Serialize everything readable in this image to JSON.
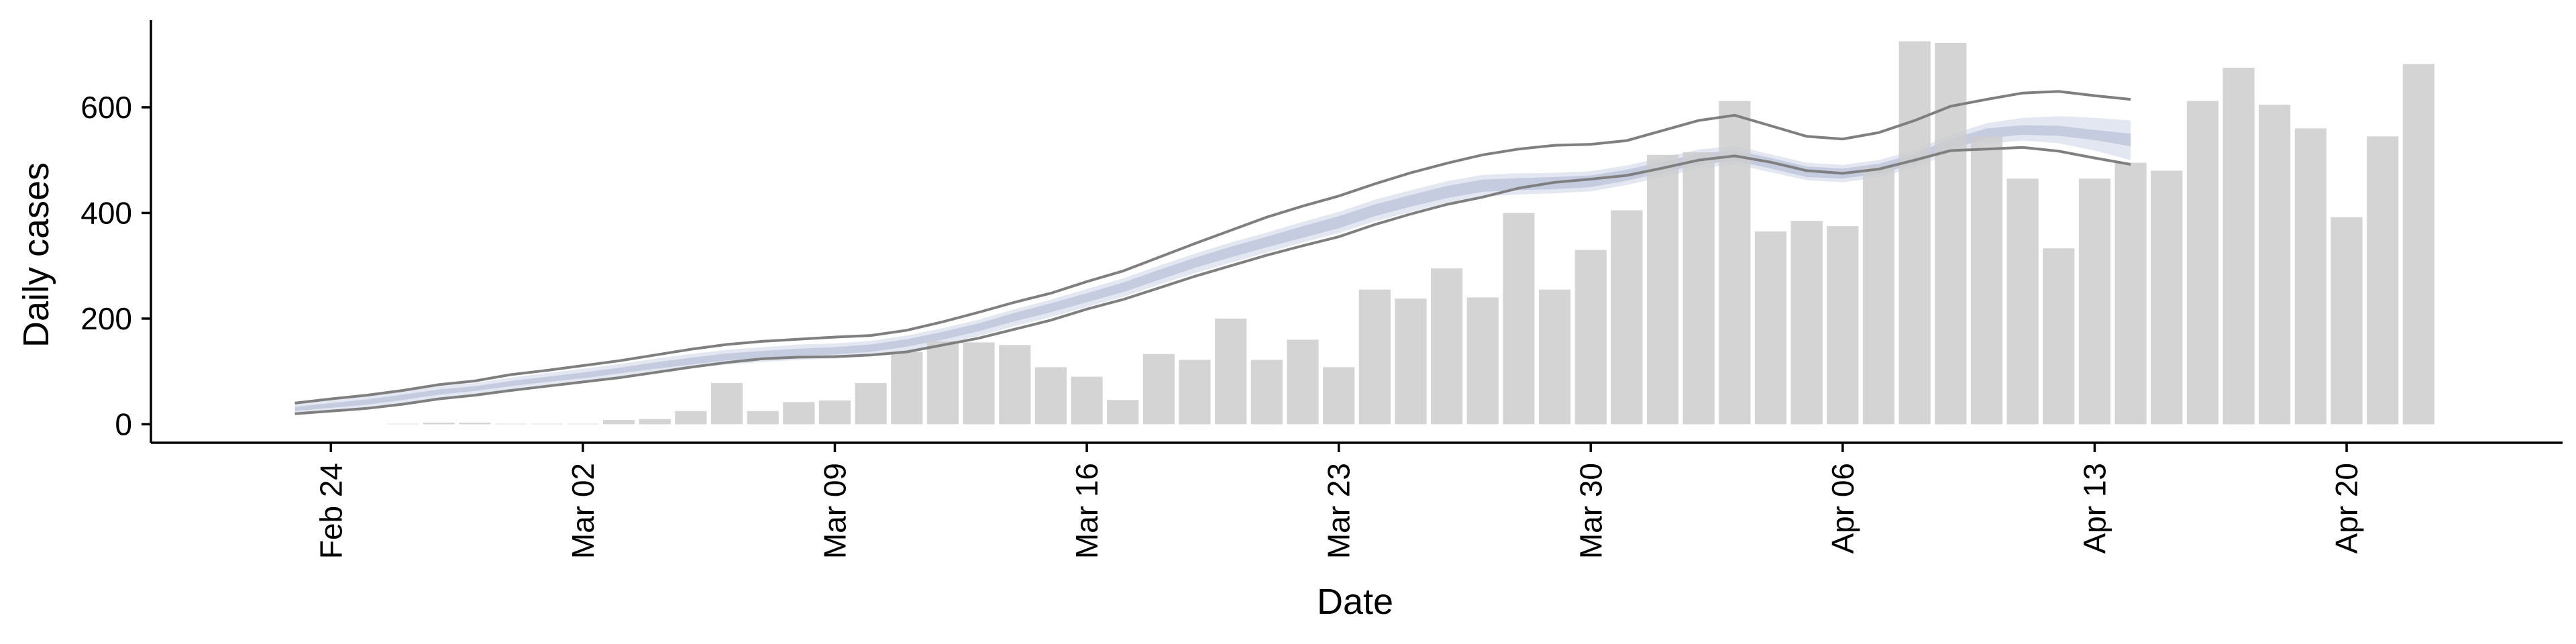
{
  "chart_data": {
    "type": "bar",
    "xlabel": "Date",
    "ylabel": "Daily cases",
    "xlim": [
      "2020-02-19",
      "2020-04-26"
    ],
    "ylim": [
      -35,
      765
    ],
    "y_ticks": [
      0,
      200,
      400,
      600
    ],
    "x_ticks": [
      {
        "date": "2020-02-24",
        "label": "Feb 24"
      },
      {
        "date": "2020-03-02",
        "label": "Mar 02"
      },
      {
        "date": "2020-03-09",
        "label": "Mar 09"
      },
      {
        "date": "2020-03-16",
        "label": "Mar 16"
      },
      {
        "date": "2020-03-23",
        "label": "Mar 23"
      },
      {
        "date": "2020-03-30",
        "label": "Mar 30"
      },
      {
        "date": "2020-04-06",
        "label": "Apr 06"
      },
      {
        "date": "2020-04-13",
        "label": "Apr 13"
      },
      {
        "date": "2020-04-20",
        "label": "Apr 20"
      }
    ],
    "bar_series": {
      "color": "#cccccc",
      "dates": [
        "2020-02-26",
        "2020-02-27",
        "2020-02-28",
        "2020-02-29",
        "2020-03-01",
        "2020-03-02",
        "2020-03-03",
        "2020-03-04",
        "2020-03-05",
        "2020-03-06",
        "2020-03-07",
        "2020-03-08",
        "2020-03-09",
        "2020-03-10",
        "2020-03-11",
        "2020-03-12",
        "2020-03-13",
        "2020-03-14",
        "2020-03-15",
        "2020-03-16",
        "2020-03-17",
        "2020-03-18",
        "2020-03-19",
        "2020-03-20",
        "2020-03-21",
        "2020-03-22",
        "2020-03-23",
        "2020-03-24",
        "2020-03-25",
        "2020-03-26",
        "2020-03-27",
        "2020-03-28",
        "2020-03-29",
        "2020-03-30",
        "2020-03-31",
        "2020-04-01",
        "2020-04-02",
        "2020-04-03",
        "2020-04-04",
        "2020-04-05",
        "2020-04-06",
        "2020-04-07",
        "2020-04-08",
        "2020-04-09",
        "2020-04-10",
        "2020-04-11",
        "2020-04-12",
        "2020-04-13",
        "2020-04-14",
        "2020-04-15",
        "2020-04-16",
        "2020-04-17",
        "2020-04-18",
        "2020-04-19",
        "2020-04-20",
        "2020-04-21",
        "2020-04-22",
        "2020-04-23"
      ],
      "values": [
        1,
        3,
        3,
        1,
        1,
        1,
        8,
        10,
        25,
        78,
        25,
        42,
        45,
        78,
        137,
        157,
        155,
        150,
        108,
        90,
        46,
        133,
        122,
        200,
        122,
        160,
        108,
        255,
        238,
        295,
        240,
        400,
        255,
        330,
        405,
        510,
        515,
        612,
        365,
        385,
        375,
        487,
        725,
        722,
        545,
        465,
        333,
        465,
        495,
        480,
        612,
        675,
        605,
        560,
        392,
        545,
        682,
        0
      ]
    },
    "band_series": {
      "dates": [
        "2020-02-23",
        "2020-02-24",
        "2020-02-25",
        "2020-02-26",
        "2020-02-27",
        "2020-02-28",
        "2020-02-29",
        "2020-03-01",
        "2020-03-02",
        "2020-03-03",
        "2020-03-04",
        "2020-03-05",
        "2020-03-06",
        "2020-03-07",
        "2020-03-08",
        "2020-03-09",
        "2020-03-10",
        "2020-03-11",
        "2020-03-12",
        "2020-03-13",
        "2020-03-14",
        "2020-03-15",
        "2020-03-16",
        "2020-03-17",
        "2020-03-18",
        "2020-03-19",
        "2020-03-20",
        "2020-03-21",
        "2020-03-22",
        "2020-03-23",
        "2020-03-24",
        "2020-03-25",
        "2020-03-26",
        "2020-03-27",
        "2020-03-28",
        "2020-03-29",
        "2020-03-30",
        "2020-03-31",
        "2020-04-01",
        "2020-04-02",
        "2020-04-03",
        "2020-04-04",
        "2020-04-05",
        "2020-04-06",
        "2020-04-07",
        "2020-04-08",
        "2020-04-09",
        "2020-04-10",
        "2020-04-11",
        "2020-04-12",
        "2020-04-13",
        "2020-04-14"
      ],
      "outer_upper": [
        38,
        46,
        53,
        62,
        72,
        78,
        88,
        97,
        105,
        114,
        124,
        133,
        141,
        146,
        151,
        153,
        158,
        168,
        182,
        198,
        218,
        236,
        256,
        276,
        300,
        323,
        344,
        363,
        383,
        402,
        425,
        443,
        460,
        472,
        475,
        476,
        479,
        490,
        505,
        520,
        527,
        511,
        495,
        491,
        500,
        519,
        548,
        570,
        580,
        583,
        580,
        575
      ],
      "outer_lower": [
        20,
        26,
        31,
        40,
        50,
        57,
        66,
        74,
        81,
        89,
        98,
        106,
        113,
        118,
        122,
        124,
        129,
        139,
        152,
        167,
        186,
        203,
        222,
        241,
        264,
        286,
        306,
        325,
        344,
        362,
        384,
        402,
        419,
        431,
        435,
        437,
        441,
        453,
        468,
        484,
        492,
        477,
        462,
        458,
        467,
        486,
        513,
        531,
        537,
        532,
        518,
        500
      ],
      "mid_upper": [
        33,
        40,
        47,
        56,
        66,
        72,
        82,
        90,
        98,
        107,
        117,
        126,
        134,
        139,
        143,
        146,
        151,
        161,
        175,
        191,
        211,
        229,
        248,
        268,
        292,
        315,
        336,
        355,
        375,
        394,
        416,
        434,
        451,
        463,
        466,
        468,
        471,
        482,
        497,
        512,
        519,
        504,
        488,
        484,
        493,
        512,
        540,
        560,
        566,
        565,
        557,
        550
      ],
      "mid_lower": [
        25,
        31,
        37,
        46,
        56,
        63,
        72,
        80,
        87,
        96,
        105,
        113,
        121,
        125,
        130,
        132,
        137,
        147,
        160,
        176,
        195,
        212,
        231,
        250,
        273,
        296,
        316,
        335,
        353,
        371,
        394,
        412,
        428,
        440,
        443,
        445,
        449,
        461,
        476,
        492,
        499,
        484,
        468,
        465,
        474,
        493,
        521,
        541,
        548,
        546,
        538,
        526
      ],
      "line_upper": [
        40,
        48,
        55,
        64,
        75,
        82,
        94,
        102,
        111,
        120,
        131,
        142,
        151,
        157,
        161,
        165,
        168,
        178,
        194,
        212,
        231,
        248,
        270,
        290,
        316,
        342,
        367,
        392,
        413,
        432,
        455,
        476,
        494,
        510,
        521,
        528,
        530,
        537,
        556,
        575,
        585,
        565,
        545,
        540,
        552,
        575,
        602,
        615,
        627,
        630,
        622,
        615
      ],
      "line_lower": [
        20,
        25,
        30,
        38,
        48,
        55,
        64,
        72,
        80,
        88,
        98,
        108,
        117,
        124,
        127,
        128,
        131,
        137,
        150,
        163,
        180,
        197,
        218,
        236,
        258,
        280,
        300,
        320,
        338,
        355,
        378,
        398,
        416,
        430,
        447,
        458,
        464,
        471,
        485,
        500,
        508,
        496,
        480,
        475,
        483,
        500,
        518,
        521,
        524,
        517,
        504,
        492
      ]
    }
  }
}
